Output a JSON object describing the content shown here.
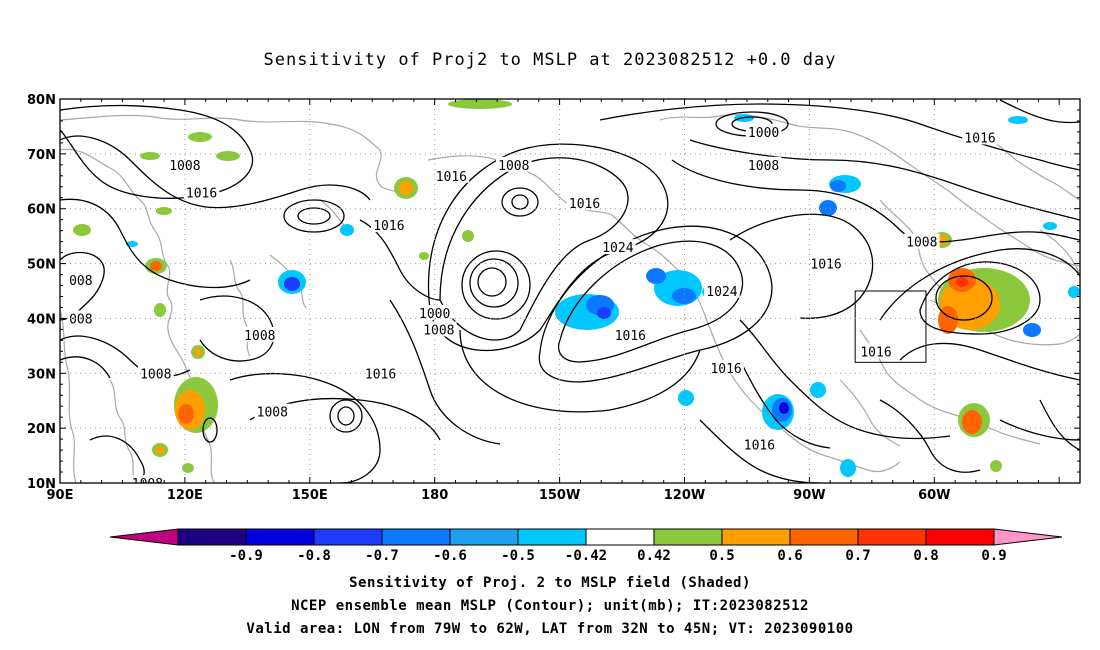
{
  "title": "Sensitivity of Proj2 to MSLP at 2023082512 +0.0 day",
  "axes": {
    "lat_labels": [
      "80N",
      "70N",
      "60N",
      "50N",
      "40N",
      "30N",
      "20N",
      "10N"
    ],
    "lon_labels": [
      "90E",
      "120E",
      "150E",
      "180",
      "150W",
      "120W",
      "90W",
      "60W"
    ]
  },
  "contour_labels": [
    {
      "text": "1008",
      "lon": 120,
      "lat": 68
    },
    {
      "text": "1016",
      "lon": 124,
      "lat": 63
    },
    {
      "text": "1016",
      "lon": 169,
      "lat": 57
    },
    {
      "text": "1016",
      "lon": -176,
      "lat": 66
    },
    {
      "text": "1008",
      "lon": -161,
      "lat": 68
    },
    {
      "text": "1016",
      "lon": -144,
      "lat": 61
    },
    {
      "text": "1024",
      "lon": -136,
      "lat": 53
    },
    {
      "text": "1000",
      "lon": -180,
      "lat": 41
    },
    {
      "text": "1008",
      "lon": -179,
      "lat": 38
    },
    {
      "text": "1016",
      "lon": -133,
      "lat": 37
    },
    {
      "text": "1024",
      "lon": -111,
      "lat": 45
    },
    {
      "text": "1000",
      "lon": -101,
      "lat": 74
    },
    {
      "text": "1008",
      "lon": -101,
      "lat": 68
    },
    {
      "text": "1016",
      "lon": -49,
      "lat": 73
    },
    {
      "text": "1016",
      "lon": -86,
      "lat": 50
    },
    {
      "text": "1008",
      "lon": -63,
      "lat": 54
    },
    {
      "text": "1016",
      "lon": -74,
      "lat": 34
    },
    {
      "text": "1016",
      "lon": -110,
      "lat": 31
    },
    {
      "text": "1016",
      "lon": -102,
      "lat": 17
    },
    {
      "text": "008",
      "lon": 95,
      "lat": 47
    },
    {
      "text": "008",
      "lon": 95,
      "lat": 40
    },
    {
      "text": "1008",
      "lon": 113,
      "lat": 30
    },
    {
      "text": "1008",
      "lon": 138,
      "lat": 37
    },
    {
      "text": "1016",
      "lon": 167,
      "lat": 30
    },
    {
      "text": "1008",
      "lon": 141,
      "lat": 23
    },
    {
      "text": "1008",
      "lon": 111,
      "lat": 10
    }
  ],
  "valid_area": {
    "lon_min": -79,
    "lon_max": -62,
    "lat_min": 32,
    "lat_max": 45
  },
  "colorbar": {
    "labels": [
      "-0.9",
      "-0.8",
      "-0.7",
      "-0.6",
      "-0.5",
      "-0.42",
      "0.42",
      "0.5",
      "0.6",
      "0.7",
      "0.8",
      "0.9"
    ],
    "colors": [
      "#c0007f",
      "#1e0082",
      "#0000dc",
      "#1e3cff",
      "#0a78ff",
      "#1ea0f0",
      "#00c8ff",
      "#ffffff",
      "#8cc83c",
      "#ffa000",
      "#ff6400",
      "#ff3200",
      "#ff0000",
      "#ff96c8"
    ]
  },
  "captions": {
    "line1": "Sensitivity of Proj. 2 to MSLP field (Shaded)",
    "line2": "NCEP ensemble mean MSLP (Contour); unit(mb); IT:2023082512",
    "line3": "Valid area: LON from 79W to 62W, LAT from 32N to 45N; VT: 2023090100"
  }
}
